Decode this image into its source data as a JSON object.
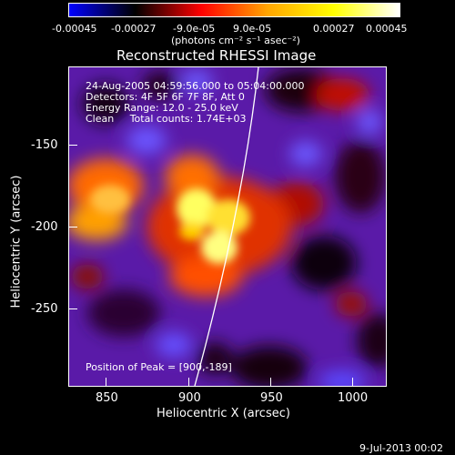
{
  "colorbar": {
    "tick_labels": [
      "-0.00045",
      "-0.00027",
      "-9.0e-05",
      "9.0e-05",
      "0.00027",
      "0.00045"
    ],
    "unit_label": "(photons cm⁻² s⁻¹ asec⁻²)",
    "colors": [
      "#0000ff",
      "#000000",
      "#ff0000",
      "#ffa500",
      "#ffff00",
      "#ffffff"
    ]
  },
  "image": {
    "title": "Reconstructed RHESSI Image",
    "info": [
      "24-Aug-2005 04:59:56.000 to 05:04:00.000",
      "Detectors: 4F 5F 6F 7F 8F, Att 0",
      "Energy Range: 12.0 - 25.0 keV",
      "Clean     Total counts: 1.74E+03"
    ],
    "peak_label": "Position of Peak = [900,-189]",
    "xlabel": "Heliocentric X (arcsec)",
    "ylabel": "Heliocentric Y (arcsec)",
    "xticks": [
      "850",
      "900",
      "950",
      "1000"
    ],
    "yticks": [
      "-150",
      "-200",
      "-250"
    ],
    "timestamp": "9-Jul-2013 00:02"
  }
}
